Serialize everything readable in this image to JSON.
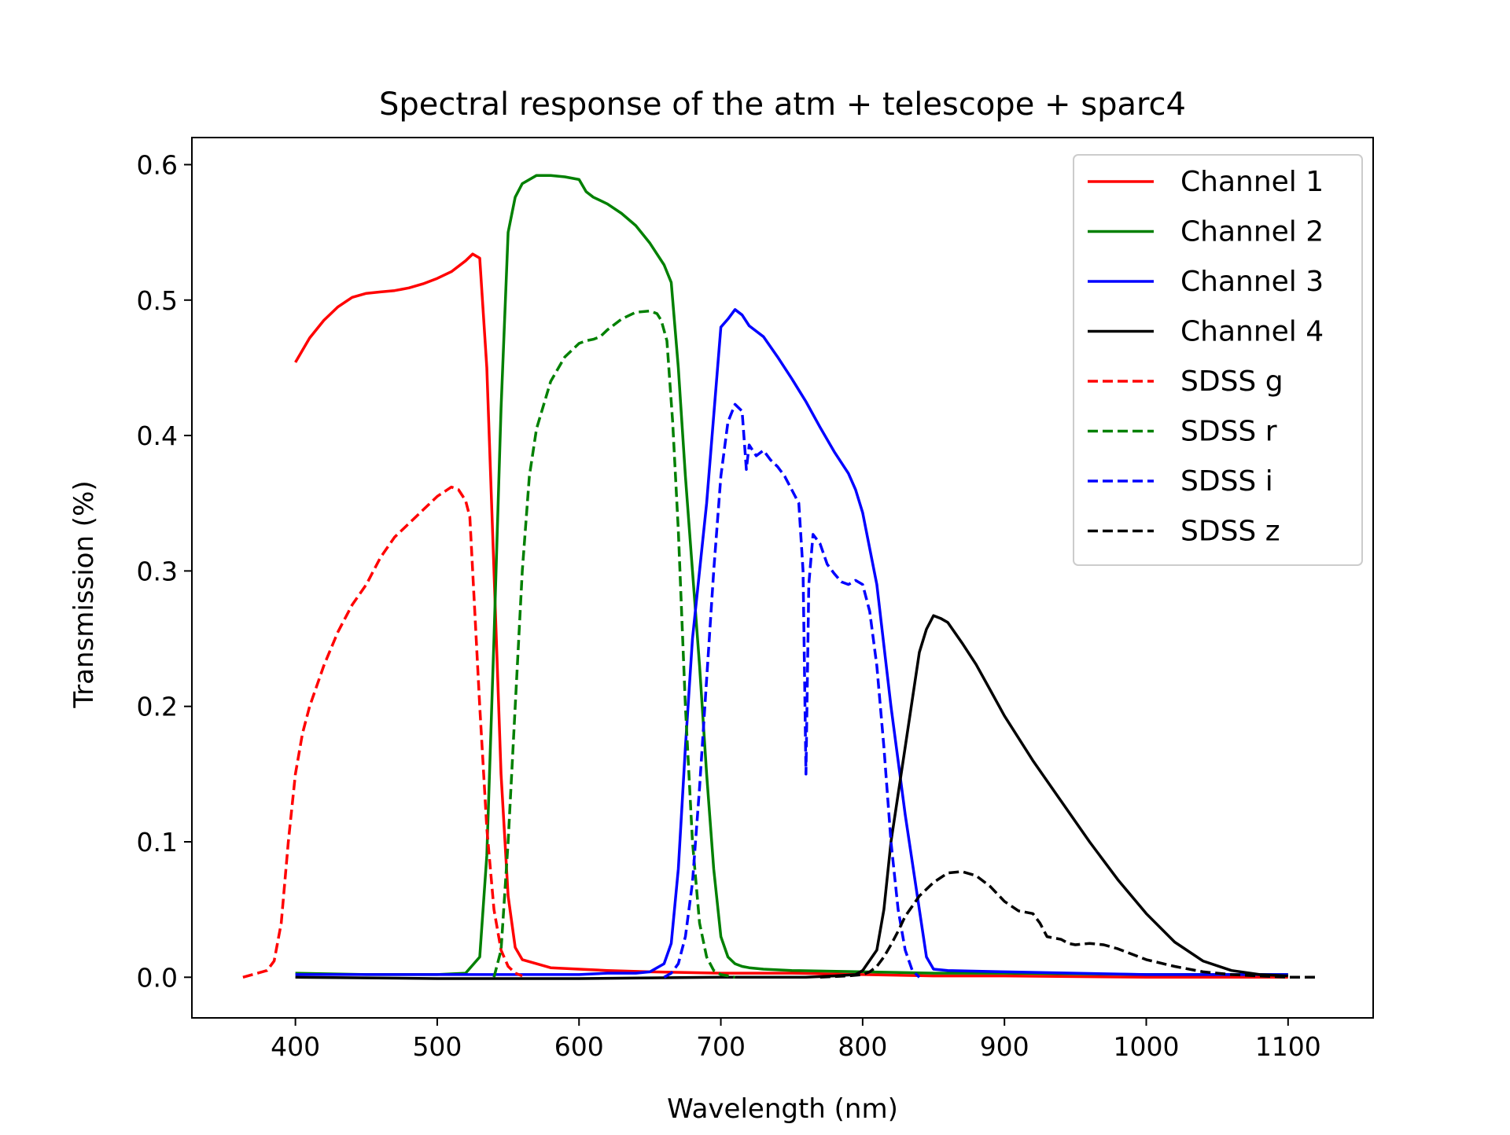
{
  "chart_data": {
    "type": "line",
    "title": "Spectral response of the atm + telescope + sparc4",
    "xlabel": "Wavelength (nm)",
    "ylabel": "Transmission (%)",
    "xlim": [
      327,
      1160
    ],
    "ylim": [
      -0.03,
      0.62
    ],
    "xticks": [
      400,
      500,
      600,
      700,
      800,
      900,
      1000,
      1100
    ],
    "yticks": [
      0.0,
      0.1,
      0.2,
      0.3,
      0.4,
      0.5,
      0.6
    ],
    "xtick_labels": [
      "400",
      "500",
      "600",
      "700",
      "800",
      "900",
      "1000",
      "1100"
    ],
    "ytick_labels": [
      "0.0",
      "0.1",
      "0.2",
      "0.3",
      "0.4",
      "0.5",
      "0.6"
    ],
    "grid": false,
    "legend_position": "top-right",
    "series": [
      {
        "name": "Channel 1",
        "color": "#ff0000",
        "dash": "solid",
        "x": [
          400,
          410,
          420,
          430,
          440,
          450,
          460,
          470,
          480,
          490,
          500,
          510,
          520,
          525,
          530,
          535,
          540,
          545,
          550,
          555,
          560,
          570,
          580,
          600,
          620,
          650,
          700,
          750,
          800,
          850,
          900,
          1000,
          1100
        ],
        "y": [
          0.454,
          0.472,
          0.485,
          0.495,
          0.502,
          0.505,
          0.506,
          0.507,
          0.509,
          0.512,
          0.516,
          0.521,
          0.529,
          0.534,
          0.531,
          0.45,
          0.3,
          0.15,
          0.06,
          0.022,
          0.013,
          0.01,
          0.007,
          0.006,
          0.005,
          0.004,
          0.003,
          0.003,
          0.002,
          0.001,
          0.001,
          0.0,
          0.0
        ]
      },
      {
        "name": "Channel 2",
        "color": "#008000",
        "dash": "solid",
        "x": [
          400,
          450,
          500,
          520,
          530,
          535,
          540,
          545,
          550,
          555,
          560,
          570,
          580,
          590,
          600,
          605,
          610,
          620,
          630,
          640,
          650,
          660,
          665,
          670,
          675,
          680,
          685,
          690,
          695,
          700,
          705,
          710,
          715,
          720,
          730,
          750,
          800,
          850,
          900,
          1000,
          1100
        ],
        "y": [
          0.003,
          0.002,
          0.002,
          0.003,
          0.015,
          0.09,
          0.25,
          0.42,
          0.55,
          0.576,
          0.586,
          0.592,
          0.592,
          0.591,
          0.589,
          0.58,
          0.576,
          0.571,
          0.564,
          0.555,
          0.542,
          0.526,
          0.513,
          0.45,
          0.37,
          0.3,
          0.23,
          0.15,
          0.08,
          0.03,
          0.015,
          0.01,
          0.008,
          0.007,
          0.006,
          0.005,
          0.004,
          0.003,
          0.003,
          0.002,
          0.002
        ]
      },
      {
        "name": "Channel 3",
        "color": "#0000ff",
        "dash": "solid",
        "x": [
          400,
          500,
          600,
          620,
          640,
          650,
          660,
          665,
          670,
          675,
          680,
          690,
          700,
          705,
          710,
          715,
          720,
          725,
          730,
          740,
          750,
          760,
          770,
          780,
          790,
          795,
          800,
          810,
          820,
          830,
          840,
          845,
          850,
          860,
          900,
          1000,
          1100
        ],
        "y": [
          0.002,
          0.002,
          0.002,
          0.003,
          0.003,
          0.004,
          0.01,
          0.025,
          0.08,
          0.17,
          0.25,
          0.35,
          0.48,
          0.486,
          0.493,
          0.489,
          0.481,
          0.477,
          0.473,
          0.458,
          0.442,
          0.425,
          0.406,
          0.388,
          0.372,
          0.36,
          0.343,
          0.29,
          0.2,
          0.12,
          0.05,
          0.015,
          0.006,
          0.005,
          0.004,
          0.002,
          0.002
        ]
      },
      {
        "name": "Channel 4",
        "color": "#000000",
        "dash": "solid",
        "x": [
          400,
          500,
          600,
          700,
          760,
          780,
          795,
          800,
          810,
          815,
          820,
          830,
          840,
          845,
          850,
          855,
          860,
          870,
          880,
          890,
          900,
          920,
          940,
          960,
          980,
          1000,
          1020,
          1040,
          1060,
          1080,
          1100
        ],
        "y": [
          0.0,
          -0.001,
          -0.001,
          0.0,
          0.0,
          0.001,
          0.002,
          0.005,
          0.02,
          0.05,
          0.1,
          0.17,
          0.24,
          0.257,
          0.267,
          0.265,
          0.262,
          0.247,
          0.231,
          0.212,
          0.193,
          0.16,
          0.13,
          0.1,
          0.072,
          0.047,
          0.026,
          0.012,
          0.005,
          0.002,
          0.001
        ]
      },
      {
        "name": "SDSS g",
        "color": "#ff0000",
        "dash": "dashed",
        "x": [
          363,
          380,
          385,
          390,
          395,
          400,
          405,
          410,
          420,
          430,
          440,
          450,
          460,
          470,
          480,
          490,
          500,
          510,
          515,
          520,
          523,
          525,
          530,
          535,
          540,
          545,
          550,
          555,
          560
        ],
        "y": [
          0.0,
          0.005,
          0.012,
          0.04,
          0.1,
          0.15,
          0.18,
          0.2,
          0.23,
          0.255,
          0.275,
          0.29,
          0.31,
          0.325,
          0.335,
          0.345,
          0.355,
          0.362,
          0.36,
          0.352,
          0.34,
          0.3,
          0.2,
          0.11,
          0.05,
          0.02,
          0.008,
          0.003,
          0.001
        ]
      },
      {
        "name": "SDSS r",
        "color": "#008000",
        "dash": "dashed",
        "x": [
          540,
          545,
          550,
          555,
          560,
          565,
          570,
          580,
          590,
          600,
          605,
          610,
          615,
          620,
          630,
          640,
          650,
          655,
          658,
          662,
          666,
          670,
          675,
          680,
          685,
          690,
          695,
          700,
          710
        ],
        "y": [
          0.0,
          0.02,
          0.1,
          0.2,
          0.3,
          0.37,
          0.405,
          0.44,
          0.458,
          0.468,
          0.47,
          0.471,
          0.473,
          0.478,
          0.486,
          0.491,
          0.492,
          0.49,
          0.485,
          0.47,
          0.41,
          0.33,
          0.2,
          0.1,
          0.04,
          0.015,
          0.005,
          0.002,
          0.0
        ]
      },
      {
        "name": "SDSS i",
        "color": "#0000ff",
        "dash": "dashed",
        "x": [
          660,
          665,
          670,
          675,
          680,
          685,
          690,
          695,
          700,
          705,
          710,
          715,
          718,
          720,
          725,
          730,
          735,
          740,
          745,
          750,
          755,
          758,
          760,
          762,
          765,
          770,
          775,
          780,
          785,
          790,
          795,
          800,
          805,
          810,
          815,
          820,
          825,
          830,
          835,
          840
        ],
        "y": [
          0.0,
          0.003,
          0.01,
          0.03,
          0.07,
          0.14,
          0.22,
          0.3,
          0.37,
          0.41,
          0.423,
          0.418,
          0.375,
          0.393,
          0.385,
          0.389,
          0.382,
          0.377,
          0.37,
          0.36,
          0.35,
          0.3,
          0.15,
          0.29,
          0.327,
          0.32,
          0.305,
          0.298,
          0.292,
          0.29,
          0.293,
          0.29,
          0.27,
          0.23,
          0.17,
          0.1,
          0.05,
          0.02,
          0.005,
          0.0
        ]
      },
      {
        "name": "SDSS z",
        "color": "#000000",
        "dash": "dashed",
        "x": [
          770,
          790,
          800,
          805,
          810,
          815,
          820,
          825,
          830,
          840,
          850,
          860,
          870,
          880,
          890,
          900,
          910,
          920,
          925,
          930,
          940,
          945,
          950,
          960,
          970,
          980,
          990,
          1000,
          1020,
          1040,
          1060,
          1080,
          1100,
          1120
        ],
        "y": [
          0.0,
          0.001,
          0.002,
          0.004,
          0.008,
          0.015,
          0.024,
          0.034,
          0.045,
          0.06,
          0.07,
          0.077,
          0.078,
          0.075,
          0.067,
          0.056,
          0.049,
          0.047,
          0.04,
          0.03,
          0.028,
          0.025,
          0.024,
          0.025,
          0.024,
          0.021,
          0.017,
          0.013,
          0.008,
          0.004,
          0.002,
          0.001,
          0.0,
          0.0
        ]
      }
    ]
  }
}
